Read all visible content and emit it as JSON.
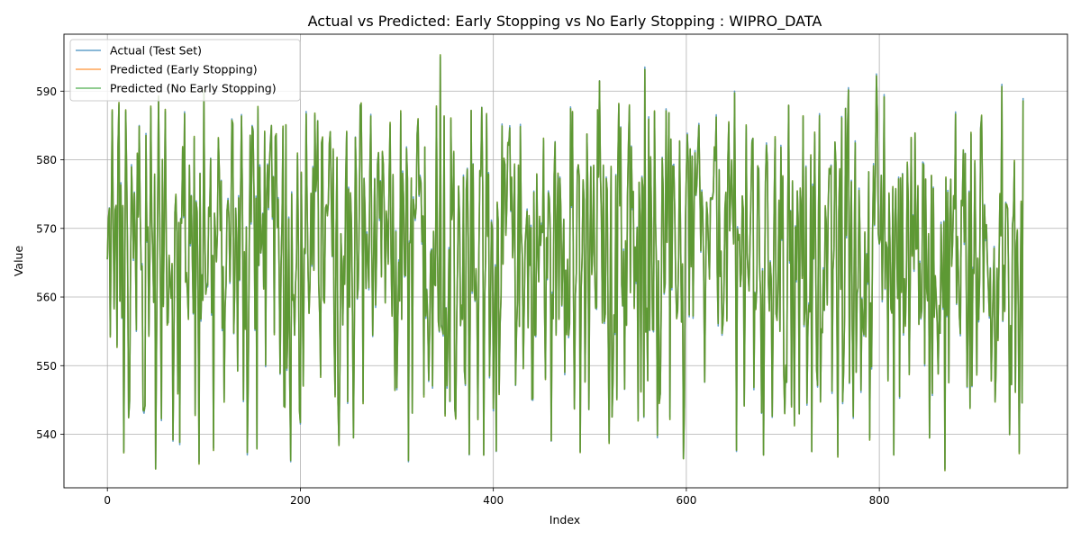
{
  "chart_data": {
    "type": "line",
    "title": "Actual vs Predicted: Early Stopping vs No Early Stopping : WIPRO_DATA",
    "xlabel": "Index",
    "ylabel": "Value",
    "xlim": [
      -45,
      995
    ],
    "ylim": [
      532.2,
      598.3
    ],
    "x_ticks": [
      0,
      200,
      400,
      600,
      800
    ],
    "x_tick_labels": [
      "0",
      "200",
      "400",
      "600",
      "800"
    ],
    "y_ticks": [
      540,
      550,
      560,
      570,
      580,
      590
    ],
    "y_tick_labels": [
      "540",
      "550",
      "560",
      "570",
      "580",
      "590"
    ],
    "grid": true,
    "legend_position": "top-left",
    "n_points": 950,
    "series": [
      {
        "name": "Actual (Test Set)",
        "color": "#1f77b4",
        "alpha": 0.7
      },
      {
        "name": "Predicted (Early Stopping)",
        "color": "#ff7f0e",
        "alpha": 0.7
      },
      {
        "name": "Predicted (No Early Stopping)",
        "color": "#2ca02c",
        "alpha": 0.7
      }
    ],
    "anchor_points": [
      {
        "x": 0,
        "y": 565.5
      },
      {
        "x": 2,
        "y": 573
      },
      {
        "x": 3,
        "y": 554.5
      },
      {
        "x": 5,
        "y": 587
      },
      {
        "x": 10,
        "y": 553
      },
      {
        "x": 12,
        "y": 588
      },
      {
        "x": 17,
        "y": 537.5
      },
      {
        "x": 19,
        "y": 587
      },
      {
        "x": 22,
        "y": 542.5
      },
      {
        "x": 30,
        "y": 555
      },
      {
        "x": 33,
        "y": 585
      },
      {
        "x": 37,
        "y": 543.5
      },
      {
        "x": 45,
        "y": 587.5
      },
      {
        "x": 50,
        "y": 535
      },
      {
        "x": 53,
        "y": 589
      },
      {
        "x": 56,
        "y": 542
      },
      {
        "x": 60,
        "y": 587
      },
      {
        "x": 68,
        "y": 539
      },
      {
        "x": 75,
        "y": 538.5
      },
      {
        "x": 80,
        "y": 587
      },
      {
        "x": 95,
        "y": 536
      },
      {
        "x": 100,
        "y": 590
      },
      {
        "x": 110,
        "y": 538
      },
      {
        "x": 115,
        "y": 583
      },
      {
        "x": 130,
        "y": 585
      },
      {
        "x": 145,
        "y": 537
      },
      {
        "x": 150,
        "y": 585
      },
      {
        "x": 155,
        "y": 538
      },
      {
        "x": 170,
        "y": 585
      },
      {
        "x": 185,
        "y": 585
      },
      {
        "x": 190,
        "y": 536
      },
      {
        "x": 200,
        "y": 541.5
      },
      {
        "x": 215,
        "y": 586.5
      },
      {
        "x": 240,
        "y": 538.5
      },
      {
        "x": 255,
        "y": 539.5
      },
      {
        "x": 262,
        "y": 588
      },
      {
        "x": 285,
        "y": 581
      },
      {
        "x": 300,
        "y": 546.5
      },
      {
        "x": 312,
        "y": 536
      },
      {
        "x": 345,
        "y": 595
      },
      {
        "x": 350,
        "y": 543
      },
      {
        "x": 375,
        "y": 537
      },
      {
        "x": 390,
        "y": 537
      },
      {
        "x": 403,
        "y": 537.5
      },
      {
        "x": 440,
        "y": 545
      },
      {
        "x": 460,
        "y": 539
      },
      {
        "x": 490,
        "y": 537.5
      },
      {
        "x": 510,
        "y": 591.5
      },
      {
        "x": 520,
        "y": 539
      },
      {
        "x": 530,
        "y": 588
      },
      {
        "x": 557,
        "y": 593.5
      },
      {
        "x": 570,
        "y": 539.5
      },
      {
        "x": 583,
        "y": 542.5
      },
      {
        "x": 597,
        "y": 536.5
      },
      {
        "x": 600,
        "y": 577.5
      },
      {
        "x": 620,
        "y": 563
      },
      {
        "x": 650,
        "y": 590
      },
      {
        "x": 652,
        "y": 537.5
      },
      {
        "x": 670,
        "y": 546.5
      },
      {
        "x": 680,
        "y": 537
      },
      {
        "x": 712,
        "y": 541.5
      },
      {
        "x": 730,
        "y": 537.5
      },
      {
        "x": 757,
        "y": 537
      },
      {
        "x": 768,
        "y": 590.5
      },
      {
        "x": 790,
        "y": 539.5
      },
      {
        "x": 797,
        "y": 592.5
      },
      {
        "x": 805,
        "y": 589.5
      },
      {
        "x": 815,
        "y": 537
      },
      {
        "x": 852,
        "y": 539.5
      },
      {
        "x": 868,
        "y": 535
      },
      {
        "x": 890,
        "y": 564
      },
      {
        "x": 927,
        "y": 591
      },
      {
        "x": 935,
        "y": 540
      },
      {
        "x": 945,
        "y": 537.5
      },
      {
        "x": 949,
        "y": 589
      }
    ]
  }
}
